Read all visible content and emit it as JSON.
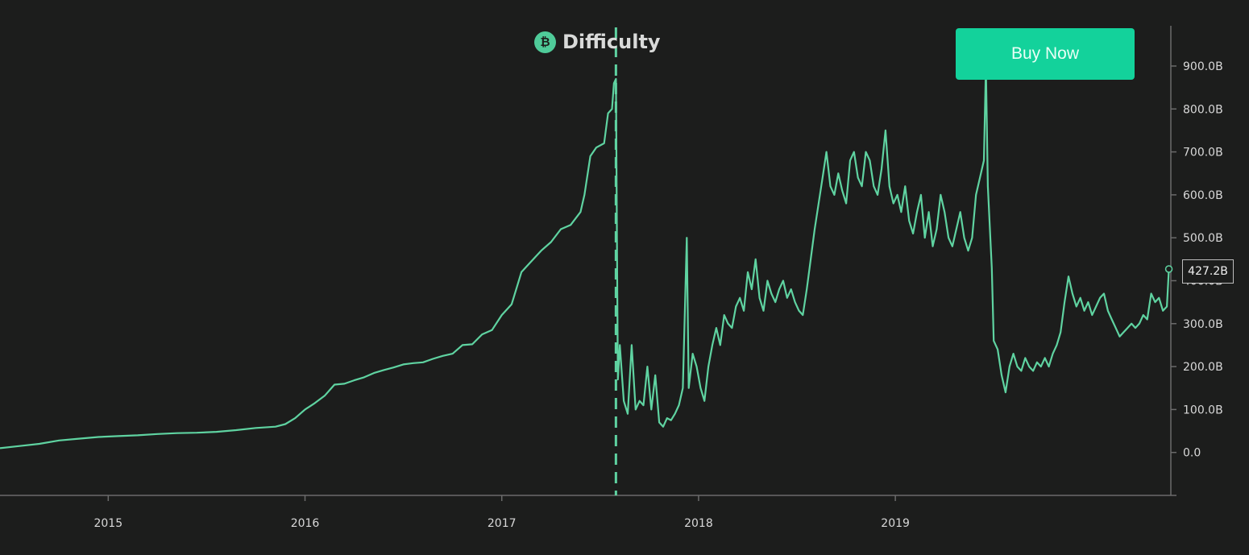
{
  "chart_data": {
    "type": "line",
    "title": "Difficulty",
    "yaxis_ticks": [
      {
        "value": 0,
        "label": "0.0"
      },
      {
        "value": 100,
        "label": "100.0B"
      },
      {
        "value": 200,
        "label": "200.0B"
      },
      {
        "value": 300,
        "label": "300.0B"
      },
      {
        "value": 400,
        "label": "400.0B"
      },
      {
        "value": 500,
        "label": "500.0B"
      },
      {
        "value": 600,
        "label": "600.0B"
      },
      {
        "value": 700,
        "label": "700.0B"
      },
      {
        "value": 800,
        "label": "800.0B"
      },
      {
        "value": 900,
        "label": "900.0B"
      }
    ],
    "xaxis_ticks": [
      {
        "value": 2015.0,
        "label": "2015"
      },
      {
        "value": 2016.0,
        "label": "2016"
      },
      {
        "value": 2017.0,
        "label": "2017"
      },
      {
        "value": 2018.0,
        "label": "2018"
      },
      {
        "value": 2019.0,
        "label": "2019"
      }
    ],
    "xlim": [
      2014.45,
      2020.4
    ],
    "ylim": [
      -100,
      990
    ],
    "y_unit": "B",
    "marker_line_x": 2017.58,
    "current_value": 427.2,
    "current_label": "427.2B",
    "colors": {
      "line": "#5fd3a1",
      "background": "#1c1d1c",
      "axis": "#6b6b6b",
      "button": "#13d29b"
    },
    "series": [
      {
        "name": "",
        "points": [
          [
            2014.45,
            10
          ],
          [
            2014.55,
            15
          ],
          [
            2014.65,
            20
          ],
          [
            2014.75,
            28
          ],
          [
            2014.85,
            32
          ],
          [
            2014.95,
            36
          ],
          [
            2015.05,
            38
          ],
          [
            2015.15,
            40
          ],
          [
            2015.25,
            43
          ],
          [
            2015.35,
            45
          ],
          [
            2015.45,
            46
          ],
          [
            2015.55,
            48
          ],
          [
            2015.65,
            52
          ],
          [
            2015.75,
            57
          ],
          [
            2015.85,
            60
          ],
          [
            2015.9,
            66
          ],
          [
            2015.95,
            80
          ],
          [
            2016.0,
            100
          ],
          [
            2016.05,
            115
          ],
          [
            2016.1,
            132
          ],
          [
            2016.15,
            158
          ],
          [
            2016.2,
            160
          ],
          [
            2016.25,
            168
          ],
          [
            2016.3,
            175
          ],
          [
            2016.35,
            185
          ],
          [
            2016.4,
            192
          ],
          [
            2016.45,
            198
          ],
          [
            2016.5,
            205
          ],
          [
            2016.55,
            208
          ],
          [
            2016.6,
            210
          ],
          [
            2016.65,
            218
          ],
          [
            2016.7,
            225
          ],
          [
            2016.75,
            230
          ],
          [
            2016.8,
            250
          ],
          [
            2016.85,
            252
          ],
          [
            2016.9,
            275
          ],
          [
            2016.95,
            285
          ],
          [
            2017.0,
            320
          ],
          [
            2017.05,
            345
          ],
          [
            2017.1,
            420
          ],
          [
            2017.15,
            445
          ],
          [
            2017.2,
            470
          ],
          [
            2017.25,
            490
          ],
          [
            2017.3,
            520
          ],
          [
            2017.35,
            530
          ],
          [
            2017.4,
            560
          ],
          [
            2017.42,
            600
          ],
          [
            2017.45,
            690
          ],
          [
            2017.48,
            710
          ],
          [
            2017.52,
            720
          ],
          [
            2017.54,
            790
          ],
          [
            2017.56,
            800
          ],
          [
            2017.57,
            860
          ],
          [
            2017.58,
            870
          ],
          [
            2017.585,
            500
          ],
          [
            2017.59,
            170
          ],
          [
            2017.6,
            250
          ],
          [
            2017.62,
            120
          ],
          [
            2017.64,
            90
          ],
          [
            2017.66,
            250
          ],
          [
            2017.68,
            100
          ],
          [
            2017.7,
            120
          ],
          [
            2017.72,
            110
          ],
          [
            2017.74,
            200
          ],
          [
            2017.76,
            100
          ],
          [
            2017.78,
            180
          ],
          [
            2017.8,
            70
          ],
          [
            2017.82,
            60
          ],
          [
            2017.84,
            80
          ],
          [
            2017.86,
            75
          ],
          [
            2017.88,
            90
          ],
          [
            2017.9,
            110
          ],
          [
            2017.92,
            150
          ],
          [
            2017.94,
            500
          ],
          [
            2017.95,
            150
          ],
          [
            2017.97,
            230
          ],
          [
            2017.99,
            200
          ],
          [
            2018.01,
            150
          ],
          [
            2018.03,
            120
          ],
          [
            2018.05,
            200
          ],
          [
            2018.07,
            250
          ],
          [
            2018.09,
            290
          ],
          [
            2018.11,
            250
          ],
          [
            2018.13,
            320
          ],
          [
            2018.15,
            300
          ],
          [
            2018.17,
            290
          ],
          [
            2018.19,
            340
          ],
          [
            2018.21,
            360
          ],
          [
            2018.23,
            330
          ],
          [
            2018.25,
            420
          ],
          [
            2018.27,
            380
          ],
          [
            2018.29,
            450
          ],
          [
            2018.31,
            360
          ],
          [
            2018.33,
            330
          ],
          [
            2018.35,
            400
          ],
          [
            2018.37,
            370
          ],
          [
            2018.39,
            350
          ],
          [
            2018.41,
            380
          ],
          [
            2018.43,
            400
          ],
          [
            2018.45,
            360
          ],
          [
            2018.47,
            380
          ],
          [
            2018.49,
            350
          ],
          [
            2018.51,
            330
          ],
          [
            2018.53,
            320
          ],
          [
            2018.55,
            380
          ],
          [
            2018.57,
            450
          ],
          [
            2018.59,
            520
          ],
          [
            2018.61,
            580
          ],
          [
            2018.63,
            640
          ],
          [
            2018.65,
            700
          ],
          [
            2018.67,
            620
          ],
          [
            2018.69,
            600
          ],
          [
            2018.71,
            650
          ],
          [
            2018.73,
            610
          ],
          [
            2018.75,
            580
          ],
          [
            2018.77,
            680
          ],
          [
            2018.79,
            700
          ],
          [
            2018.81,
            640
          ],
          [
            2018.83,
            620
          ],
          [
            2018.85,
            700
          ],
          [
            2018.87,
            680
          ],
          [
            2018.89,
            620
          ],
          [
            2018.91,
            600
          ],
          [
            2018.93,
            660
          ],
          [
            2018.95,
            750
          ],
          [
            2018.97,
            620
          ],
          [
            2018.99,
            580
          ],
          [
            2019.01,
            600
          ],
          [
            2019.03,
            560
          ],
          [
            2019.05,
            620
          ],
          [
            2019.07,
            540
          ],
          [
            2019.09,
            510
          ],
          [
            2019.11,
            560
          ],
          [
            2019.13,
            600
          ],
          [
            2019.15,
            500
          ],
          [
            2019.17,
            560
          ],
          [
            2019.19,
            480
          ],
          [
            2019.21,
            520
          ],
          [
            2019.23,
            600
          ],
          [
            2019.25,
            560
          ],
          [
            2019.27,
            500
          ],
          [
            2019.29,
            480
          ],
          [
            2019.31,
            520
          ],
          [
            2019.33,
            560
          ],
          [
            2019.35,
            500
          ],
          [
            2019.37,
            470
          ],
          [
            2019.39,
            500
          ],
          [
            2019.41,
            600
          ],
          [
            2019.43,
            640
          ],
          [
            2019.45,
            680
          ],
          [
            2019.46,
            900
          ],
          [
            2019.47,
            620
          ],
          [
            2019.49,
            430
          ],
          [
            2019.5,
            260
          ],
          [
            2019.52,
            240
          ],
          [
            2019.54,
            180
          ],
          [
            2019.56,
            140
          ],
          [
            2019.58,
            200
          ],
          [
            2019.6,
            230
          ],
          [
            2019.62,
            200
          ],
          [
            2019.64,
            190
          ],
          [
            2019.66,
            220
          ],
          [
            2019.68,
            200
          ],
          [
            2019.7,
            190
          ],
          [
            2019.72,
            210
          ],
          [
            2019.74,
            200
          ],
          [
            2019.76,
            220
          ],
          [
            2019.78,
            200
          ],
          [
            2019.8,
            230
          ],
          [
            2019.82,
            250
          ],
          [
            2019.84,
            280
          ],
          [
            2019.86,
            350
          ],
          [
            2019.88,
            410
          ],
          [
            2019.9,
            370
          ],
          [
            2019.92,
            340
          ],
          [
            2019.94,
            360
          ],
          [
            2019.96,
            330
          ],
          [
            2019.98,
            350
          ],
          [
            2020.0,
            320
          ],
          [
            2020.02,
            340
          ],
          [
            2020.04,
            360
          ],
          [
            2020.06,
            370
          ],
          [
            2020.08,
            330
          ],
          [
            2020.1,
            310
          ],
          [
            2020.12,
            290
          ],
          [
            2020.14,
            270
          ],
          [
            2020.16,
            280
          ],
          [
            2020.18,
            290
          ],
          [
            2020.2,
            300
          ],
          [
            2020.22,
            290
          ],
          [
            2020.24,
            300
          ],
          [
            2020.26,
            320
          ],
          [
            2020.28,
            310
          ],
          [
            2020.3,
            370
          ],
          [
            2020.32,
            350
          ],
          [
            2020.34,
            360
          ],
          [
            2020.36,
            330
          ],
          [
            2020.38,
            340
          ],
          [
            2020.39,
            427.2
          ]
        ]
      }
    ]
  },
  "header": {
    "title": "Difficulty",
    "icon": "bitcoin-coin-icon",
    "icon_glyph": "₿"
  },
  "button": {
    "label": "Buy Now"
  }
}
